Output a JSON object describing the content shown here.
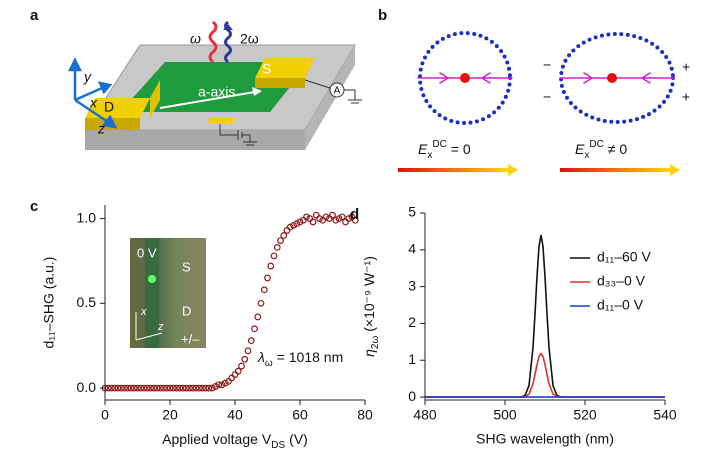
{
  "panel_a": {
    "label": "a",
    "omega": "ω",
    "two_omega": "2ω",
    "source": "S",
    "drain": "D",
    "channel_axis": "a-axis",
    "ammeter": "A",
    "axis_x": "x",
    "axis_y": "y",
    "axis_z": "z"
  },
  "panel_b": {
    "label": "b",
    "minus": "−",
    "plus": "+",
    "left_field": {
      "symbol": "E",
      "subscript": "x",
      "superscript": "DC",
      "relation": "= 0"
    },
    "right_field": {
      "symbol": "E",
      "subscript": "x",
      "superscript": "DC",
      "relation": "≠ 0"
    }
  },
  "chart_data": [
    {
      "panel_label": "c",
      "type": "scatter",
      "color": "#8b1a1a",
      "x_label": {
        "text": "Applied voltage",
        "symbol": "V",
        "subscript": "DS",
        "unit": "(V)"
      },
      "y_label": "d₁₁–SHG (a.u.)",
      "annotation": {
        "symbol": "λ",
        "subscript": "ω",
        "text": "= 1018 nm"
      },
      "inset": {
        "voltage": "0 V",
        "source": "S",
        "drain": "D",
        "polarity": "+/–",
        "axis_x": "x",
        "axis_z": "z"
      },
      "x": [
        0,
        1,
        2,
        3,
        4,
        5,
        6,
        7,
        8,
        9,
        10,
        11,
        12,
        13,
        14,
        15,
        16,
        17,
        18,
        19,
        20,
        21,
        22,
        23,
        24,
        25,
        26,
        27,
        28,
        29,
        30,
        31,
        32,
        33,
        34,
        35,
        36,
        37,
        38,
        39,
        40,
        41,
        42,
        43,
        44,
        45,
        46,
        47,
        48,
        49,
        50,
        51,
        52,
        53,
        54,
        55,
        56,
        57,
        58,
        59,
        60,
        61,
        62,
        63,
        64,
        65,
        66,
        67,
        68,
        69,
        70,
        71,
        72,
        73,
        74,
        75,
        76,
        77
      ],
      "values": [
        0,
        0,
        0,
        0,
        0,
        0,
        0,
        0,
        0,
        0,
        0,
        0,
        0,
        0,
        0,
        0,
        0,
        0,
        0,
        0,
        0,
        0,
        0,
        0,
        0,
        0,
        0,
        0,
        0,
        0,
        0,
        0,
        0,
        0,
        0.01,
        0.02,
        0.02,
        0.03,
        0.04,
        0.06,
        0.08,
        0.1,
        0.13,
        0.17,
        0.22,
        0.28,
        0.35,
        0.42,
        0.5,
        0.58,
        0.65,
        0.72,
        0.78,
        0.83,
        0.87,
        0.9,
        0.93,
        0.95,
        0.96,
        0.97,
        0.98,
        0.99,
        1.01,
        1,
        0.98,
        1.02,
        1,
        0.99,
        1.01,
        1,
        1.02,
        0.99,
        1,
        1.01,
        0.98,
        1,
        1.01,
        0.99
      ],
      "xlim": [
        0,
        80
      ],
      "xticks": [
        0,
        20,
        40,
        60,
        80
      ],
      "ylim": [
        -0.07,
        1.08
      ],
      "yticks": [
        {
          "value": 0,
          "label": "0.0"
        },
        {
          "value": 0.5,
          "label": "0.5"
        },
        {
          "value": 1,
          "label": "1.0"
        }
      ]
    },
    {
      "panel_label": "d",
      "type": "line",
      "legend": "upper right",
      "x_label": "SHG wavelength (nm)",
      "y_label": {
        "symbol": "η",
        "subscript": "2ω",
        "unit": "(×10⁻⁹ W⁻¹)"
      },
      "x": [
        480,
        500,
        503,
        504,
        505,
        506,
        507,
        507.5,
        508,
        508.5,
        509,
        509.5,
        510,
        510.5,
        511,
        512,
        513,
        514,
        515,
        520,
        540
      ],
      "series": [
        {
          "name": "d₁₁–60 V",
          "color": "#111111",
          "values": [
            0,
            0,
            0,
            0.003,
            0.04,
            0.31,
            1.35,
            2.26,
            3.27,
            4.09,
            4.4,
            4.09,
            3.27,
            2.26,
            1.35,
            0.31,
            0.04,
            0.003,
            0,
            0,
            0
          ]
        },
        {
          "name": "d₃₃–0 V",
          "color": "#e03030",
          "values": [
            0,
            0,
            0,
            0.001,
            0.01,
            0.08,
            0.36,
            0.61,
            0.88,
            1.1,
            1.18,
            1.1,
            0.88,
            0.61,
            0.36,
            0.08,
            0.01,
            0.001,
            0,
            0,
            0
          ]
        },
        {
          "name": "d₁₁–0 V",
          "color": "#2040d0",
          "values": [
            0,
            0,
            0,
            0,
            0,
            0,
            0,
            0,
            0,
            0,
            0,
            0,
            0,
            0,
            0,
            0,
            0,
            0,
            0,
            0,
            0
          ]
        }
      ],
      "xlim": [
        480,
        540
      ],
      "xticks": [
        480,
        500,
        520,
        540
      ],
      "ylim": [
        -0.08,
        5
      ],
      "yticks": [
        0,
        1,
        2,
        3,
        4,
        5
      ]
    }
  ]
}
